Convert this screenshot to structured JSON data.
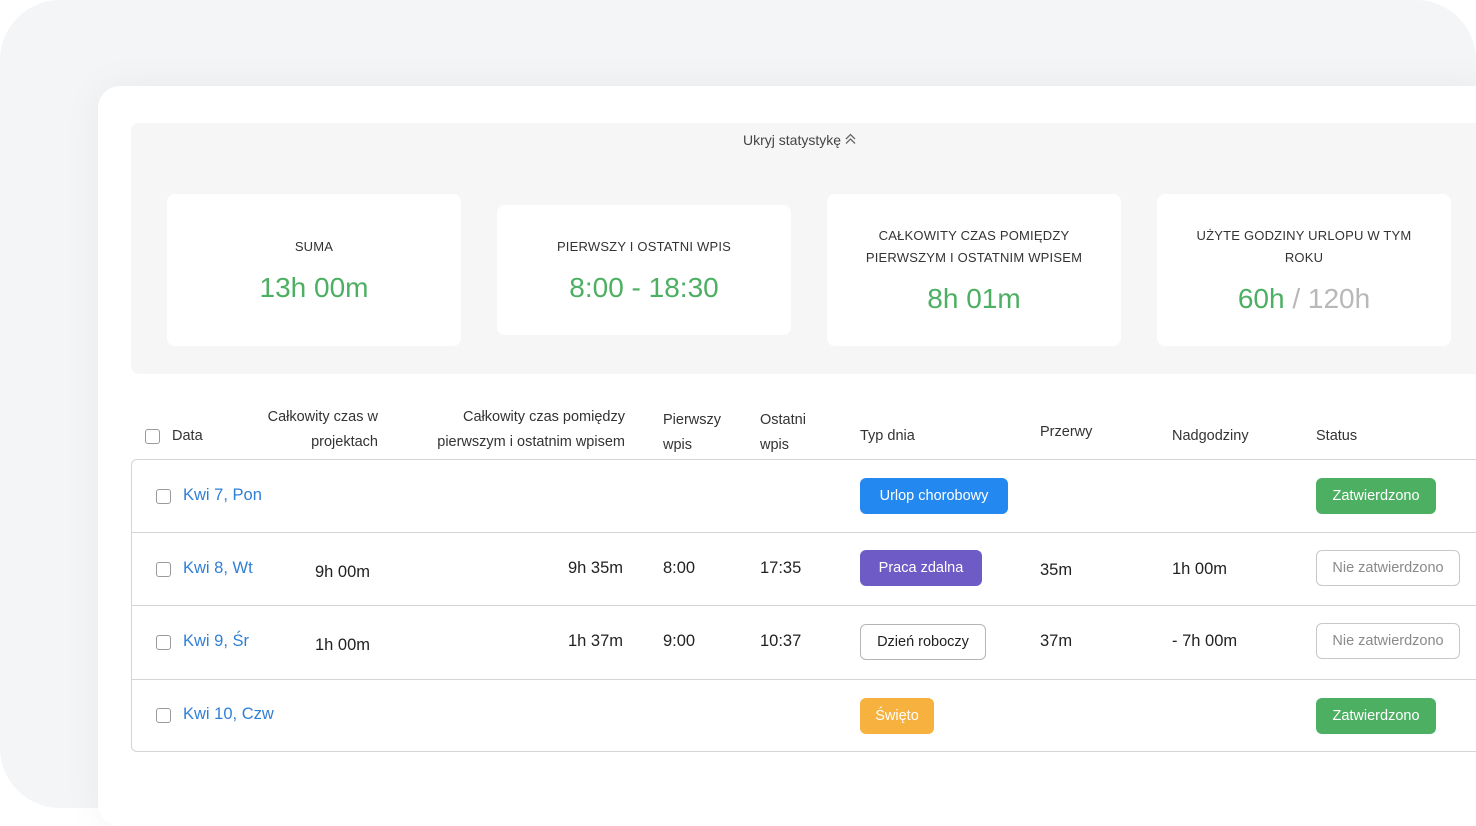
{
  "stats": {
    "toggle_label": "Ukryj statystykę",
    "cards": [
      {
        "label": "SUMA",
        "value": "13h 00m"
      },
      {
        "label": "PIERWSZY I OSTATNI WPIS",
        "value": "8:00 - 18:30"
      },
      {
        "label_line1": "CAŁKOWITY CZAS POMIĘDZY",
        "label_line2": "PIERWSZYM I OSTATNIM WPISEM",
        "value": "8h 01m"
      },
      {
        "label_line1": "UŻYTE GODZINY URLOPU W TYM",
        "label_line2": "ROKU",
        "used": "60h",
        "separator": "/",
        "total": "120h"
      }
    ]
  },
  "table": {
    "headers": {
      "date": "Data",
      "project_time_line1": "Całkowity czas w",
      "project_time_line2": "projektach",
      "between_line1": "Całkowity czas pomiędzy",
      "between_line2": "pierwszym i ostatnim wpisem",
      "first_line1": "Pierwszy",
      "first_line2": "wpis",
      "last_line1": "Ostatni",
      "last_line2": "wpis",
      "day_type": "Typ dnia",
      "breaks": "Przerwy",
      "overtime": "Nadgodziny",
      "status": "Status"
    },
    "rows": [
      {
        "date": "Kwi 7, Pon",
        "project_time": "",
        "between": "",
        "first": "",
        "last": "",
        "day_type": "Urlop chorobowy",
        "day_type_color": "#2388f0",
        "breaks": "",
        "overtime": "",
        "status": "Zatwierdzono",
        "status_color": "#4caf62"
      },
      {
        "date": "Kwi 8, Wt",
        "project_time": "9h 00m",
        "between": "9h 35m",
        "first": "8:00",
        "last": "17:35",
        "day_type": "Praca zdalna",
        "day_type_color": "#6e5bc5",
        "breaks": "35m",
        "overtime": "1h 00m",
        "status": "Nie zatwierdzono"
      },
      {
        "date": "Kwi 9, Śr",
        "project_time": "1h 00m",
        "between": "1h 37m",
        "first": "9:00",
        "last": "10:37",
        "day_type": "Dzień roboczy",
        "breaks": "37m",
        "overtime": "- 7h 00m",
        "status": "Nie zatwierdzono"
      },
      {
        "date": "Kwi 10, Czw",
        "project_time": "",
        "between": "",
        "first": "",
        "last": "",
        "day_type": "Święto",
        "day_type_color": "#f6b13f",
        "breaks": "",
        "overtime": "",
        "status": "Zatwierdzono",
        "status_color": "#4caf62"
      }
    ]
  },
  "colors": {
    "accent_green": "#4caf62",
    "link_blue": "#2f7fd6",
    "muted_gray": "#b8b8b8"
  }
}
